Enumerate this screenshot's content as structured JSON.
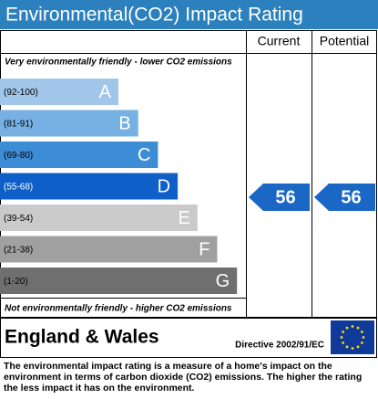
{
  "title": "Environmental(CO2) Impact Rating",
  "columns": {
    "current": "Current",
    "potential": "Potential"
  },
  "top_note": "Very environmentally friendly - lower CO2 emissions",
  "bottom_note": "Not environmentally friendly - higher CO2 emissions",
  "bands": [
    {
      "range": "(92-100)",
      "letter": "A",
      "color": "#a2c6ea"
    },
    {
      "range": "(81-91)",
      "letter": "B",
      "color": "#77b0e2"
    },
    {
      "range": "(69-80)",
      "letter": "C",
      "color": "#3d8cd6"
    },
    {
      "range": "(55-68)",
      "letter": "D",
      "color": "#0f5fc8"
    },
    {
      "range": "(39-54)",
      "letter": "E",
      "color": "#cacaca"
    },
    {
      "range": "(21-38)",
      "letter": "F",
      "color": "#a0a0a0"
    },
    {
      "range": "(1-20)",
      "letter": "G",
      "color": "#6f6f6f"
    }
  ],
  "current": 56,
  "potential": 56,
  "arrow_color": "#1b67c6",
  "region": "England & Wales",
  "directive": "Directive 2002/91/EC",
  "description": "The environmental impact rating is a measure of a home's impact on the environment in terms of carbon dioxide (CO2) emissions. The higher the rating the less impact it has on the environment."
}
